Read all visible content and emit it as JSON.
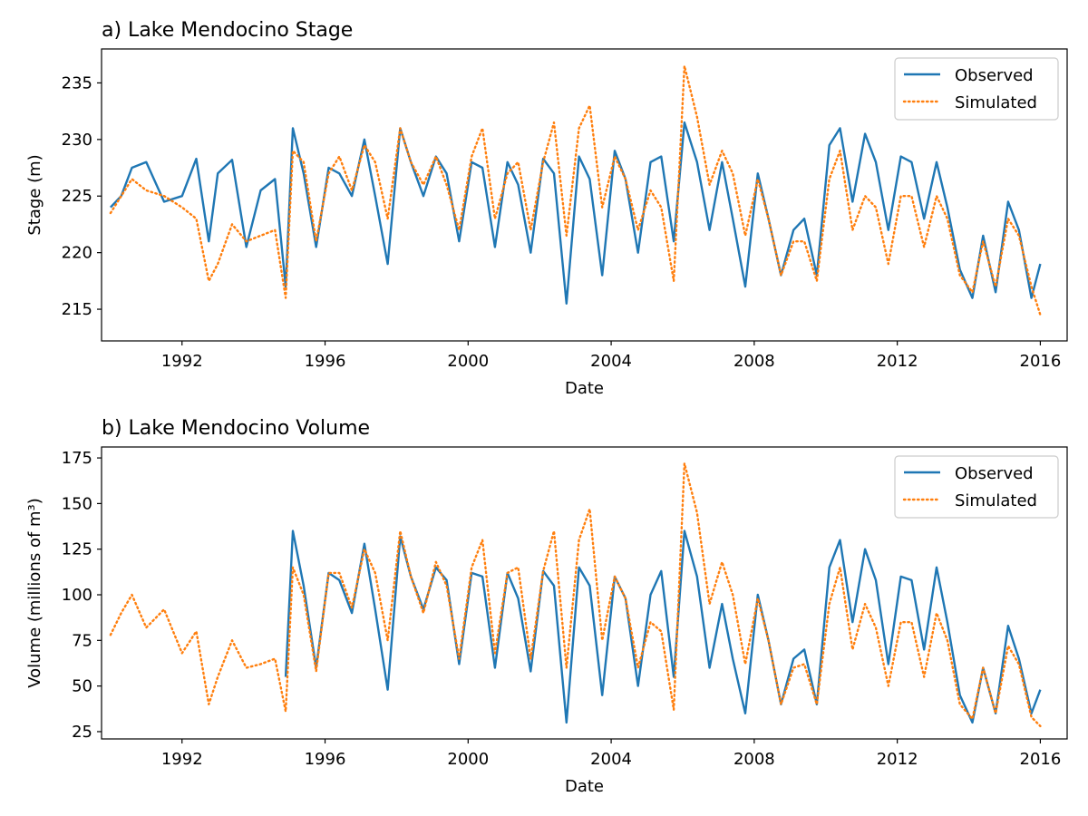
{
  "colors": {
    "observed": "#1f77b4",
    "simulated": "#ff7f0e",
    "axes": "#000000",
    "legend_border": "#cccccc"
  },
  "chart_data": [
    {
      "type": "line",
      "title": "a) Lake Mendocino Stage",
      "xlabel": "Date",
      "ylabel": "Stage (m)",
      "xlim": [
        1989.75,
        2016.75
      ],
      "ylim": [
        212.2,
        238.0
      ],
      "xticks": [
        1992,
        1996,
        2000,
        2004,
        2008,
        2012,
        2016
      ],
      "yticks": [
        215,
        220,
        225,
        230,
        235
      ],
      "grid": false,
      "legend": "upper right",
      "x": [
        1990.0,
        1990.3,
        1990.6,
        1991.0,
        1991.5,
        1992.0,
        1992.4,
        1992.75,
        1993.0,
        1993.4,
        1993.8,
        1994.2,
        1994.6,
        1994.9,
        1995.1,
        1995.4,
        1995.75,
        1996.1,
        1996.4,
        1996.75,
        1997.1,
        1997.4,
        1997.75,
        1998.1,
        1998.4,
        1998.75,
        1999.1,
        1999.4,
        1999.75,
        2000.1,
        2000.4,
        2000.75,
        2001.1,
        2001.4,
        2001.75,
        2002.1,
        2002.4,
        2002.75,
        2003.1,
        2003.4,
        2003.75,
        2004.1,
        2004.4,
        2004.75,
        2005.1,
        2005.4,
        2005.75,
        2006.05,
        2006.4,
        2006.75,
        2007.1,
        2007.4,
        2007.75,
        2008.1,
        2008.4,
        2008.75,
        2009.1,
        2009.4,
        2009.75,
        2010.1,
        2010.4,
        2010.75,
        2011.1,
        2011.4,
        2011.75,
        2012.1,
        2012.4,
        2012.75,
        2013.1,
        2013.4,
        2013.75,
        2014.1,
        2014.4,
        2014.75,
        2015.1,
        2015.4,
        2015.75,
        2016.0
      ],
      "series": [
        {
          "name": "Observed",
          "style": "solid",
          "values": [
            224.0,
            225.0,
            227.5,
            228.0,
            224.5,
            225.0,
            228.3,
            221.0,
            227.0,
            228.2,
            220.5,
            225.5,
            226.5,
            217.0,
            231.0,
            227.0,
            220.5,
            227.5,
            227.0,
            225.0,
            230.0,
            225.0,
            219.0,
            231.0,
            228.0,
            225.0,
            228.5,
            227.0,
            221.0,
            228.0,
            227.5,
            220.5,
            228.0,
            226.0,
            220.0,
            228.3,
            227.0,
            215.5,
            228.5,
            226.5,
            218.0,
            229.0,
            226.5,
            220.0,
            228.0,
            228.5,
            221.0,
            231.5,
            228.0,
            222.0,
            228.0,
            223.0,
            217.0,
            227.0,
            223.0,
            218.0,
            222.0,
            223.0,
            218.0,
            229.5,
            231.0,
            224.5,
            230.5,
            228.0,
            222.0,
            228.5,
            228.0,
            223.0,
            228.0,
            224.0,
            218.5,
            216.0,
            221.5,
            216.5,
            224.5,
            222.0,
            216.0,
            219.0
          ]
        },
        {
          "name": "Simulated",
          "style": "dotted",
          "values": [
            223.5,
            225.0,
            226.5,
            225.5,
            225.0,
            224.0,
            223.0,
            217.5,
            219.0,
            222.5,
            221.0,
            221.5,
            222.0,
            216.0,
            229.0,
            228.0,
            221.0,
            227.0,
            228.5,
            225.5,
            229.5,
            228.0,
            223.0,
            231.0,
            228.0,
            226.0,
            228.5,
            226.0,
            222.0,
            228.5,
            231.0,
            223.0,
            227.0,
            228.0,
            222.0,
            228.0,
            231.5,
            221.5,
            231.0,
            233.0,
            224.0,
            228.5,
            226.5,
            222.0,
            225.5,
            224.0,
            217.5,
            236.5,
            232.0,
            226.0,
            229.0,
            227.0,
            221.5,
            226.5,
            223.0,
            218.0,
            221.0,
            221.0,
            217.5,
            226.5,
            229.0,
            222.0,
            225.0,
            224.0,
            219.0,
            225.0,
            225.0,
            220.5,
            225.0,
            223.0,
            218.0,
            216.5,
            221.0,
            217.0,
            223.0,
            221.5,
            217.0,
            214.5
          ]
        }
      ]
    },
    {
      "type": "line",
      "title": "b) Lake Mendocino Volume",
      "xlabel": "Date",
      "ylabel": "Volume (millions of m³)",
      "xlim": [
        1989.75,
        2016.75
      ],
      "ylim": [
        21.0,
        181.0
      ],
      "xticks": [
        1992,
        1996,
        2000,
        2004,
        2008,
        2012,
        2016
      ],
      "yticks": [
        25,
        50,
        75,
        100,
        125,
        150,
        175
      ],
      "grid": false,
      "legend": "upper right",
      "x": [
        1990.0,
        1990.3,
        1990.6,
        1991.0,
        1991.5,
        1992.0,
        1992.4,
        1992.75,
        1993.0,
        1993.4,
        1993.8,
        1994.2,
        1994.6,
        1994.9,
        1995.1,
        1995.4,
        1995.75,
        1996.1,
        1996.4,
        1996.75,
        1997.1,
        1997.4,
        1997.75,
        1998.1,
        1998.4,
        1998.75,
        1999.1,
        1999.4,
        1999.75,
        2000.1,
        2000.4,
        2000.75,
        2001.1,
        2001.4,
        2001.75,
        2002.1,
        2002.4,
        2002.75,
        2003.1,
        2003.4,
        2003.75,
        2004.1,
        2004.4,
        2004.75,
        2005.1,
        2005.4,
        2005.75,
        2006.05,
        2006.4,
        2006.75,
        2007.1,
        2007.4,
        2007.75,
        2008.1,
        2008.4,
        2008.75,
        2009.1,
        2009.4,
        2009.75,
        2010.1,
        2010.4,
        2010.75,
        2011.1,
        2011.4,
        2011.75,
        2012.1,
        2012.4,
        2012.75,
        2013.1,
        2013.4,
        2013.75,
        2014.1,
        2014.4,
        2014.75,
        2015.1,
        2015.4,
        2015.75,
        2016.0
      ],
      "series": [
        {
          "name": "Observed",
          "style": "solid",
          "values": [
            null,
            null,
            null,
            null,
            null,
            null,
            null,
            null,
            null,
            null,
            null,
            null,
            null,
            55.0,
            135.0,
            105.0,
            60.0,
            112.0,
            108.0,
            90.0,
            128.0,
            92.0,
            48.0,
            132.0,
            110.0,
            92.0,
            115.0,
            108.0,
            62.0,
            112.0,
            110.0,
            60.0,
            112.0,
            98.0,
            58.0,
            113.0,
            105.0,
            30.0,
            115.0,
            105.0,
            45.0,
            110.0,
            98.0,
            50.0,
            100.0,
            113.0,
            55.0,
            135.0,
            110.0,
            60.0,
            95.0,
            65.0,
            35.0,
            100.0,
            75.0,
            40.0,
            65.0,
            70.0,
            40.0,
            115.0,
            130.0,
            85.0,
            125.0,
            108.0,
            62.0,
            110.0,
            108.0,
            70.0,
            115.0,
            85.0,
            45.0,
            30.0,
            60.0,
            35.0,
            83.0,
            65.0,
            35.0,
            48.0
          ]
        },
        {
          "name": "Simulated",
          "style": "dotted",
          "values": [
            78.0,
            90.0,
            100.0,
            82.0,
            92.0,
            68.0,
            80.0,
            40.0,
            55.0,
            75.0,
            60.0,
            62.0,
            65.0,
            36.0,
            115.0,
            100.0,
            58.0,
            112.0,
            112.0,
            93.0,
            125.0,
            112.0,
            75.0,
            135.0,
            110.0,
            90.0,
            118.0,
            105.0,
            65.0,
            115.0,
            130.0,
            68.0,
            112.0,
            115.0,
            65.0,
            113.0,
            135.0,
            60.0,
            130.0,
            147.0,
            75.0,
            110.0,
            98.0,
            60.0,
            85.0,
            80.0,
            37.0,
            172.0,
            145.0,
            95.0,
            118.0,
            100.0,
            62.0,
            98.0,
            75.0,
            40.0,
            60.0,
            62.0,
            40.0,
            95.0,
            115.0,
            70.0,
            95.0,
            82.0,
            50.0,
            85.0,
            85.0,
            55.0,
            90.0,
            75.0,
            40.0,
            32.0,
            60.0,
            35.0,
            72.0,
            62.0,
            33.0,
            28.0
          ]
        }
      ]
    }
  ]
}
